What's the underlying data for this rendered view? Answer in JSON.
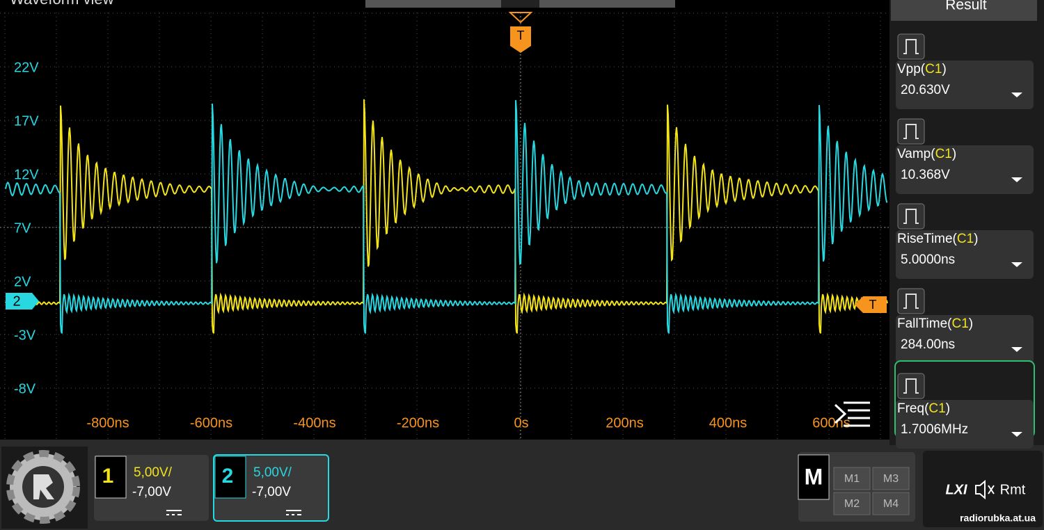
{
  "header": {
    "title": "Waveform view"
  },
  "trigger_marker": "T",
  "trigger_level_marker": "T",
  "channel_marker": "2",
  "y_labels": [
    "22V",
    "17V",
    "12V",
    "7V",
    "2V",
    "-3V",
    "-8V"
  ],
  "x_labels": [
    "-800ns",
    "-600ns",
    "-400ns",
    "-200ns",
    "0s",
    "200ns",
    "400ns",
    "600ns"
  ],
  "result_panel": {
    "title": "Result",
    "measurements": [
      {
        "label_prefix": "Vpp(",
        "source": "C1",
        "label_suffix": ")",
        "value": "20.630V"
      },
      {
        "label_prefix": "Vamp(",
        "source": "C1",
        "label_suffix": ")",
        "value": "10.368V"
      },
      {
        "label_prefix": "RiseTime(",
        "source": "C1",
        "label_suffix": ")",
        "value": "5.0000ns"
      },
      {
        "label_prefix": "FallTime(",
        "source": "C1",
        "label_suffix": ")",
        "value": "284.00ns"
      },
      {
        "label_prefix": "Freq(",
        "source": "C1",
        "label_suffix": ")",
        "value": "1.7006MHz"
      }
    ]
  },
  "channels": [
    {
      "number": "1",
      "scale": "5,00V/",
      "offset": "-7,00V"
    },
    {
      "number": "2",
      "scale": "5,00V/",
      "offset": "-7,00V"
    }
  ],
  "math": {
    "label": "M",
    "buttons": [
      "M1",
      "M3",
      "M2",
      "M4"
    ]
  },
  "status": {
    "lxi": "LXI",
    "remote": "Rmt"
  },
  "watermark": "radiorubka.at.ua"
}
